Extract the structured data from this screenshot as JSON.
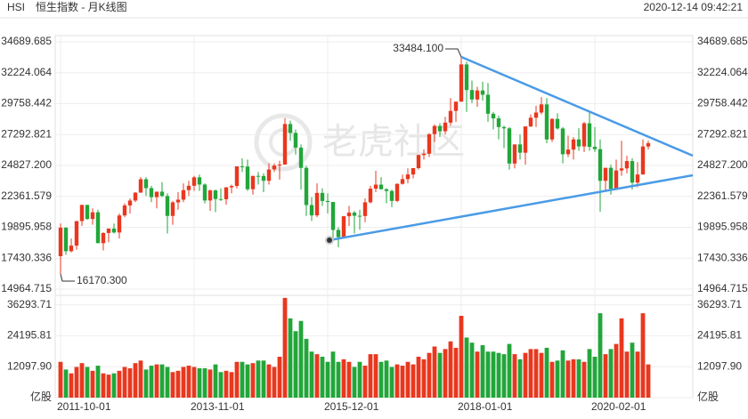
{
  "header": {
    "symbol": "HSI",
    "title": "恒生指数 - 月K线图",
    "timestamp": "2020-12-14 09:42:21"
  },
  "watermark": "老虎社区",
  "chart_data": {
    "type": "candlestick",
    "up_color": "#e8381f",
    "down_color": "#22a63a",
    "max_label": "33484.100",
    "min_label": "16170.300",
    "categories": [
      "2011-10-01",
      null,
      null,
      null,
      null,
      null,
      null,
      null,
      null,
      null,
      null,
      null,
      null,
      null,
      null,
      null,
      null,
      null,
      null,
      null,
      null,
      null,
      null,
      null,
      null,
      "2013-11-01",
      null,
      null,
      null,
      null,
      null,
      null,
      null,
      null,
      null,
      null,
      null,
      null,
      null,
      null,
      null,
      null,
      null,
      null,
      null,
      null,
      null,
      null,
      null,
      null,
      "2015-12-01",
      null,
      null,
      null,
      null,
      null,
      null,
      null,
      null,
      null,
      null,
      null,
      null,
      null,
      null,
      null,
      null,
      null,
      null,
      null,
      null,
      null,
      null,
      null,
      null,
      "2018-01-01",
      null,
      null,
      null,
      null,
      null,
      null,
      null,
      null,
      null,
      null,
      null,
      null,
      null,
      null,
      null,
      null,
      null,
      null,
      null,
      null,
      null,
      null,
      null,
      null,
      "2020-02-01",
      null,
      null,
      null,
      null,
      null,
      null,
      null,
      null,
      null,
      null
    ],
    "open": [
      17592,
      19864,
      17989,
      18434,
      20390,
      21680,
      20556,
      21094,
      18630,
      19441,
      19796,
      19482,
      20840,
      21641,
      22030,
      22657,
      23730,
      23020,
      22300,
      22737,
      22392,
      20803,
      21883,
      22100,
      22859,
      23206,
      23881,
      23306,
      22035,
      22837,
      22151,
      22134,
      23082,
      23191,
      24757,
      24742,
      22933,
      23998,
      23987,
      23605,
      24507,
      24823,
      24901,
      28133,
      27424,
      26250,
      24636,
      21670,
      20846,
      22640,
      21996,
      21914,
      19683,
      19112,
      20777,
      21067,
      20815,
      20794,
      21891,
      22977,
      23297,
      22934,
      22790,
      22000,
      23360,
      23740,
      24111,
      24615,
      25660,
      25764,
      27323,
      27970,
      27554,
      28245,
      29177,
      29919,
      32887,
      30844,
      30093,
      30808,
      30468,
      28955,
      28583,
      27888,
      27788,
      24979,
      26506,
      25845,
      27942,
      28633,
      29051,
      29699,
      26901,
      28542,
      27777,
      25724,
      26092,
      26906,
      26346,
      28189,
      26312,
      26129,
      23603,
      24643,
      22961,
      24427,
      24595,
      25177,
      23459,
      24107,
      26341
    ],
    "high": [
      20200,
      19900,
      19000,
      20400,
      21700,
      21700,
      21400,
      21300,
      19500,
      19800,
      20200,
      21000,
      21800,
      22200,
      22700,
      23900,
      23900,
      23200,
      22700,
      23500,
      22600,
      22000,
      22700,
      23400,
      23600,
      24000,
      24100,
      23400,
      22900,
      22900,
      23000,
      23100,
      23300,
      24700,
      25400,
      25300,
      23900,
      24300,
      24200,
      25000,
      25000,
      25200,
      28600,
      28400,
      27700,
      26500,
      24800,
      22300,
      23400,
      23000,
      22600,
      21900,
      19900,
      20800,
      21600,
      21200,
      21300,
      22200,
      23200,
      24400,
      23900,
      23000,
      22900,
      23400,
      24100,
      24600,
      24600,
      25700,
      26100,
      27400,
      28100,
      28200,
      28700,
      30200,
      29900,
      33484.1,
      33100,
      31600,
      31100,
      31500,
      31400,
      29100,
      28800,
      28000,
      27900,
      26500,
      27300,
      27900,
      28900,
      29600,
      30280,
      30200,
      28600,
      29000,
      27900,
      27200,
      27100,
      27800,
      28300,
      29200,
      27900,
      26900,
      24600,
      24900,
      25300,
      26800,
      25600,
      25400,
      25100,
      26900,
      26800
    ],
    "low": [
      16170.3,
      17700,
      17900,
      18100,
      20000,
      20500,
      20100,
      18700,
      18050,
      18700,
      19400,
      19000,
      20700,
      21000,
      21900,
      22700,
      22400,
      21900,
      21400,
      22300,
      19400,
      20100,
      21300,
      21900,
      22400,
      22800,
      22800,
      21800,
      21200,
      21100,
      22000,
      21700,
      22600,
      23000,
      24300,
      22800,
      22500,
      23300,
      22700,
      23300,
      24300,
      23700,
      24900,
      26800,
      25700,
      22900,
      20800,
      20400,
      20700,
      21600,
      21000,
      18900,
      18300,
      19000,
      20000,
      19400,
      19700,
      20300,
      21800,
      22700,
      22900,
      21800,
      21500,
      21900,
      23300,
      23400,
      23800,
      24500,
      25300,
      25500,
      26700,
      27100,
      27300,
      28000,
      28300,
      29900,
      29100,
      29800,
      29500,
      30000,
      28300,
      27700,
      26900,
      26200,
      24500,
      24600,
      25300,
      24900,
      27900,
      27900,
      28900,
      26600,
      26700,
      27700,
      25000,
      25500,
      25300,
      26000,
      25900,
      26000,
      25900,
      21139,
      22800,
      22500,
      22900,
      24000,
      24200,
      22900,
      23100,
      24100,
      26100
    ],
    "close": [
      19864,
      17989,
      18434,
      20390,
      21680,
      20556,
      21094,
      18630,
      19441,
      19796,
      19482,
      20840,
      21641,
      22030,
      22657,
      23730,
      23020,
      22300,
      22737,
      22392,
      20803,
      21883,
      22100,
      22859,
      23206,
      23881,
      23306,
      22035,
      22837,
      22151,
      22134,
      23082,
      23191,
      24757,
      24742,
      22933,
      23998,
      23987,
      23605,
      24507,
      24823,
      24901,
      28133,
      27424,
      26250,
      24636,
      21670,
      20846,
      22640,
      21996,
      21914,
      19683,
      19112,
      20777,
      21067,
      20815,
      20794,
      21891,
      22977,
      23297,
      22934,
      22790,
      22000,
      23360,
      23740,
      24111,
      24615,
      25660,
      25764,
      27323,
      27970,
      27554,
      28245,
      29177,
      29919,
      32887,
      30844,
      30093,
      30808,
      30468,
      28955,
      28583,
      27888,
      27788,
      24979,
      26506,
      25845,
      27942,
      28633,
      29051,
      29699,
      26901,
      28542,
      27777,
      25724,
      26092,
      26906,
      26346,
      28189,
      26312,
      26129,
      23603,
      24643,
      22961,
      24427,
      24595,
      25177,
      23459,
      24107,
      26341,
      26600
    ],
    "volume": [
      14000,
      11000,
      9500,
      12000,
      13500,
      12000,
      10500,
      12500,
      9500,
      9000,
      9500,
      10500,
      12000,
      11500,
      13500,
      14500,
      11000,
      12500,
      13000,
      13000,
      12000,
      10000,
      10500,
      12000,
      12500,
      12000,
      11500,
      11500,
      11000,
      13000,
      10000,
      10500,
      10000,
      14000,
      14000,
      13000,
      13500,
      14500,
      14500,
      13000,
      12000,
      16000,
      39000,
      31000,
      26000,
      30000,
      23000,
      18000,
      17000,
      16000,
      14000,
      18000,
      14000,
      15000,
      14000,
      12000,
      14000,
      12500,
      17000,
      17000,
      14000,
      14500,
      12000,
      13000,
      12500,
      14000,
      13000,
      16000,
      15000,
      17500,
      20000,
      17500,
      19000,
      22000,
      19500,
      32000,
      23500,
      21500,
      18000,
      20500,
      18000,
      18000,
      17500,
      17000,
      21000,
      17000,
      15000,
      17500,
      19000,
      19000,
      17500,
      19500,
      14000,
      14500,
      18500,
      14500,
      15000,
      15000,
      14000,
      19000,
      16000,
      33000,
      17000,
      19000,
      21000,
      31000,
      18000,
      21500,
      18000,
      33000,
      13000
    ],
    "ylim": [
      14964.715,
      34689.685
    ],
    "yticks": [
      34689.685,
      32224.064,
      29758.442,
      27292.821,
      {
        "value": 24827.2,
        "label": "24827.200"
      },
      22361.579,
      19895.958,
      17430.336,
      14964.715
    ],
    "volume_ylim": [
      0,
      40000
    ],
    "volume_yticks": [
      36293.71,
      24195.81,
      {
        "value": 12097.9,
        "label": "12097.90"
      },
      {
        "value": 0,
        "label": "亿股"
      }
    ],
    "grid": true
  }
}
